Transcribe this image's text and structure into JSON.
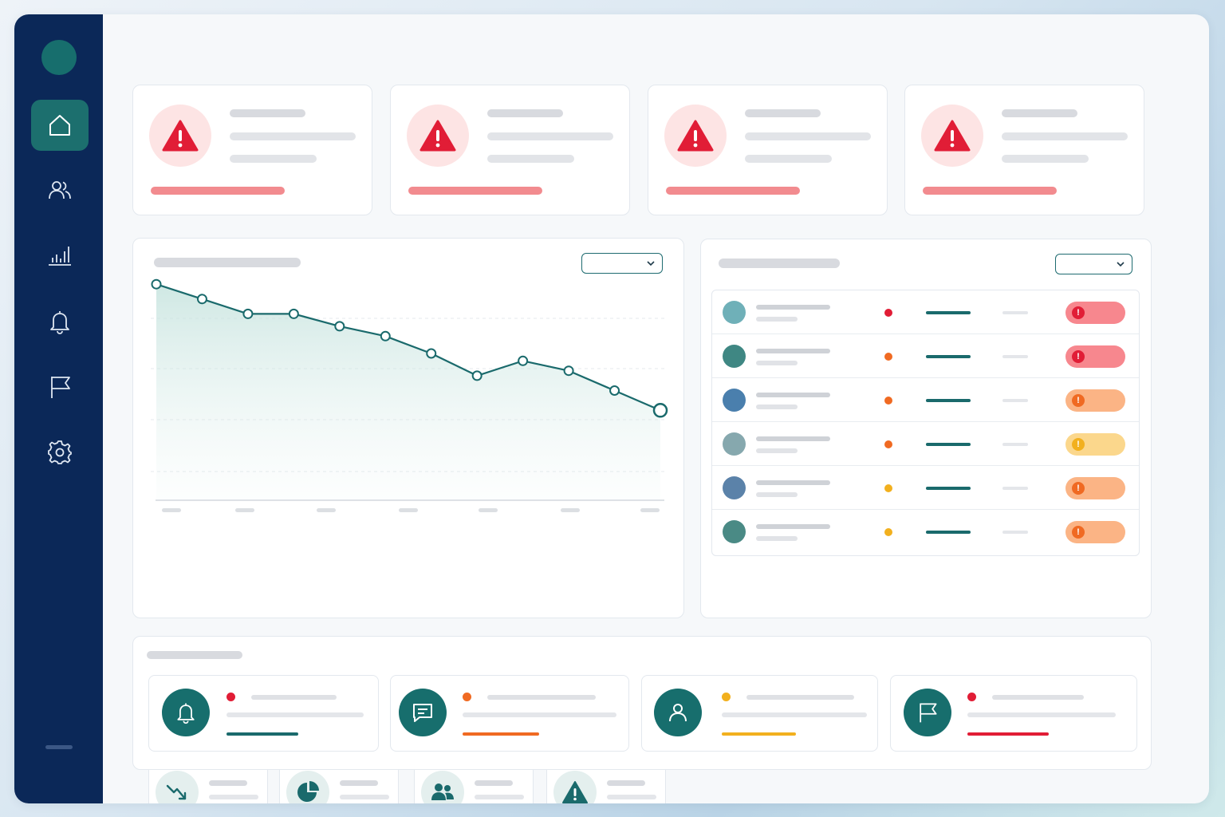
{
  "sidebar": {
    "items": [
      {
        "icon": "home-icon",
        "active": true
      },
      {
        "icon": "users-icon",
        "active": false
      },
      {
        "icon": "bar-chart-icon",
        "active": false
      },
      {
        "icon": "bell-icon",
        "active": false
      },
      {
        "icon": "flag-icon",
        "active": false
      },
      {
        "icon": "gear-icon",
        "active": false
      }
    ]
  },
  "alert_cards": [
    {
      "icon": "warning-triangle-icon",
      "severity_color": "#e11d36"
    },
    {
      "icon": "warning-triangle-icon",
      "severity_color": "#e11d36"
    },
    {
      "icon": "warning-triangle-icon",
      "severity_color": "#e11d36"
    },
    {
      "icon": "warning-triangle-icon",
      "severity_color": "#e11d36"
    }
  ],
  "chart_data": {
    "type": "line",
    "title": "",
    "xlabel": "",
    "ylabel": "",
    "grid": true,
    "series": [
      {
        "values": [
          88,
          82,
          76,
          76,
          71,
          67,
          60,
          51,
          57,
          53,
          45,
          37
        ]
      }
    ],
    "ylim": [
      0,
      100
    ]
  },
  "kpi_tiles": [
    {
      "icon": "trend-down-icon"
    },
    {
      "icon": "pie-chart-icon"
    },
    {
      "icon": "users-group-icon"
    },
    {
      "icon": "warning-triangle-icon"
    }
  ],
  "incident_rows": [
    {
      "avatar_color": "#6fb0b8",
      "priority_color": "#e11d36",
      "status_color": "#f7878e",
      "status_icon_color": "#e11d36"
    },
    {
      "avatar_color": "#3f8783",
      "priority_color": "#f06a22",
      "status_color": "#f7878e",
      "status_icon_color": "#e11d36"
    },
    {
      "avatar_color": "#4a7fad",
      "priority_color": "#f06a22",
      "status_color": "#fbb485",
      "status_icon_color": "#f06a22"
    },
    {
      "avatar_color": "#86a8ae",
      "priority_color": "#f06a22",
      "status_color": "#fbd78c",
      "status_icon_color": "#f2b01e"
    },
    {
      "avatar_color": "#5b82a9",
      "priority_color": "#f2b01e",
      "status_color": "#fbb485",
      "status_icon_color": "#f06a22"
    },
    {
      "avatar_color": "#4a8a85",
      "priority_color": "#f2b01e",
      "status_color": "#fbb485",
      "status_icon_color": "#f06a22"
    }
  ],
  "activity": [
    {
      "icon": "bell-icon",
      "dot_color": "#e11d36",
      "accent_color": "#1a6a6c"
    },
    {
      "icon": "chat-icon",
      "dot_color": "#f06a22",
      "accent_color": "#f06a22"
    },
    {
      "icon": "user-icon",
      "dot_color": "#f2b01e",
      "accent_color": "#f2b01e"
    },
    {
      "icon": "flag-icon",
      "dot_color": "#e11d36",
      "accent_color": "#e11d36"
    }
  ],
  "colors": {
    "sidebar": "#0b2858",
    "accent": "#176e6d",
    "danger": "#e11d36",
    "warning": "#f06a22",
    "caution": "#f2b01e"
  }
}
